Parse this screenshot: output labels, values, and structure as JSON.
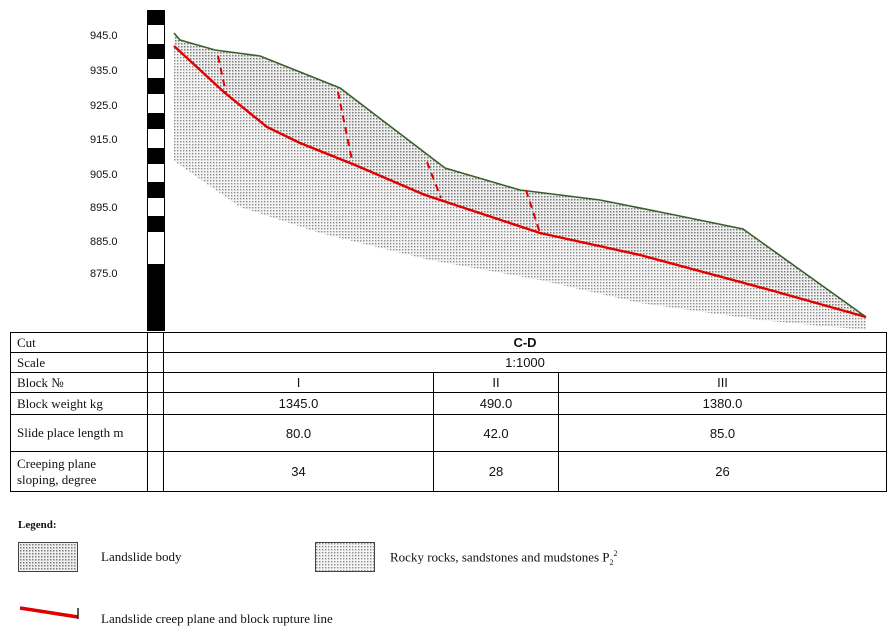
{
  "elevation_labels": [
    "945.0",
    "935.0",
    "925.0",
    "915.0",
    "905.0",
    "895.0",
    "885.0",
    "875.0"
  ],
  "table": {
    "rows": {
      "cut": {
        "label": "Cut",
        "value": "C-D"
      },
      "scale": {
        "label": "Scale",
        "value": "1:1000"
      },
      "block_no": {
        "label": "Block №",
        "values": [
          "I",
          "II",
          "III"
        ]
      },
      "block_weight": {
        "label": "Block weight kg",
        "values": [
          "1345.0",
          "490.0",
          "1380.0"
        ]
      },
      "slide_length": {
        "label": "Slide place length m",
        "values": [
          "80.0",
          "42.0",
          "85.0"
        ]
      },
      "creeping_plane": {
        "label_line1": "Creeping plane",
        "label_line2": "sloping, degree",
        "values": [
          "34",
          "28",
          "26"
        ]
      }
    }
  },
  "legend": {
    "title": "Legend:",
    "items": {
      "landslide_body": "Landslide body",
      "rocky_rocks": "Rocky rocks, sandstones and mudstones P",
      "rocky_rocks_sub": "2",
      "rocky_rocks_sup": "2",
      "creep_line": "Landslide creep plane and block rupture line"
    }
  },
  "colors": {
    "creep_line": "#e00000",
    "surface_outline": "#3b5e2b",
    "hatch_fill": "#a9a9a9"
  }
}
